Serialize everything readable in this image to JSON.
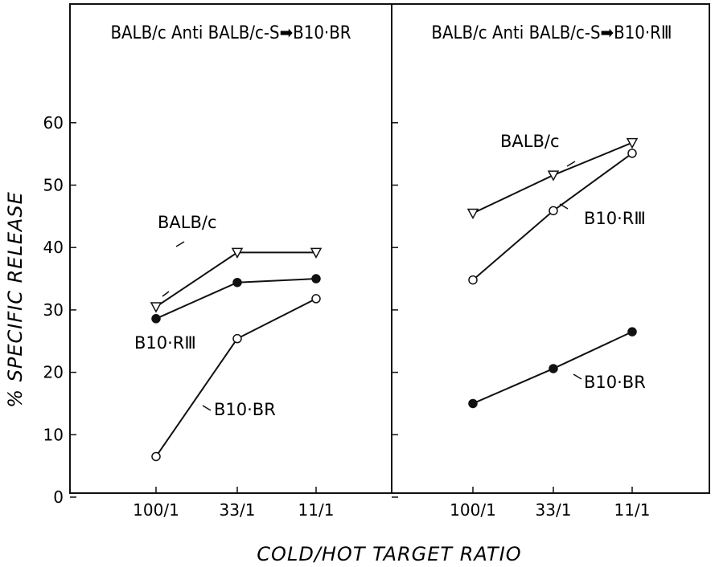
{
  "chart_data": [
    {
      "type": "line",
      "panel": "left",
      "title": "BALB/c Anti BALB/c-S➡B10·BR",
      "categories": [
        "100/1",
        "33/1",
        "11/1"
      ],
      "ylim": [
        0,
        70
      ],
      "yticks": [
        0,
        10,
        20,
        30,
        40,
        50,
        60
      ],
      "series": [
        {
          "name": "BALB/c",
          "marker": "open-triangle-down",
          "values": [
            30.5,
            39.2,
            39.2
          ]
        },
        {
          "name": "B10·RⅢ",
          "marker": "filled-circle",
          "values": [
            28.6,
            34.4,
            35
          ]
        },
        {
          "name": "B10·BR",
          "marker": "open-circle",
          "values": [
            6.5,
            25.4,
            31.8
          ]
        }
      ]
    },
    {
      "type": "line",
      "panel": "right",
      "title": "BALB/c Anti BALB/c-S➡B10·RⅢ",
      "categories": [
        "100/1",
        "33/1",
        "11/1"
      ],
      "ylim": [
        0,
        70
      ],
      "yticks": [
        0,
        10,
        20,
        30,
        40,
        50,
        60
      ],
      "series": [
        {
          "name": "BALB/c",
          "marker": "open-triangle-down",
          "values": [
            45.5,
            51.6,
            56.8
          ]
        },
        {
          "name": "B10·BR",
          "marker": "open-circle",
          "values": [
            34.8,
            45.9,
            55.1
          ]
        },
        {
          "name": "B10·RⅢ",
          "marker": "filled-circle",
          "values": [
            15,
            20.6,
            26.5
          ]
        }
      ]
    }
  ],
  "ylabel": "% SPECIFIC RELEASE",
  "xlabel": "COLD/HOT TARGET RATIO"
}
